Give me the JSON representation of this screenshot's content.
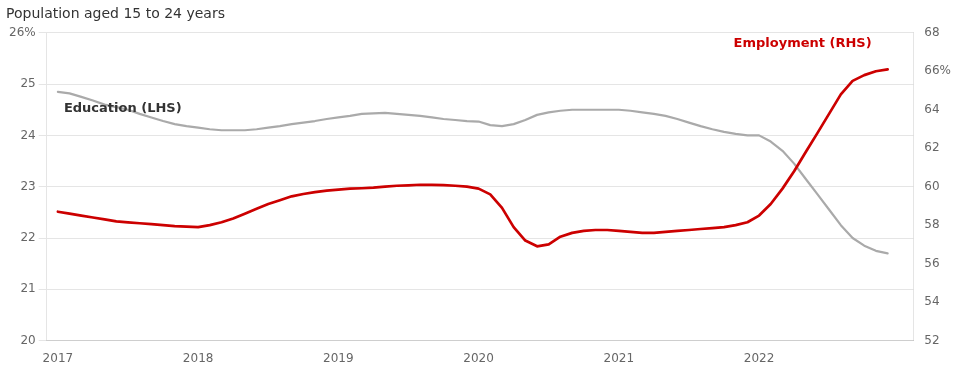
{
  "chart_data": {
    "type": "line",
    "title": "Population aged 15 to 24 years",
    "x": [
      2017.0,
      2017.083,
      2017.167,
      2017.25,
      2017.333,
      2017.417,
      2017.5,
      2017.583,
      2017.667,
      2017.75,
      2017.833,
      2017.917,
      2018.0,
      2018.083,
      2018.167,
      2018.25,
      2018.333,
      2018.417,
      2018.5,
      2018.583,
      2018.667,
      2018.75,
      2018.833,
      2018.917,
      2019.0,
      2019.083,
      2019.167,
      2019.25,
      2019.333,
      2019.417,
      2019.5,
      2019.583,
      2019.667,
      2019.75,
      2019.833,
      2019.917,
      2020.0,
      2020.083,
      2020.167,
      2020.25,
      2020.333,
      2020.417,
      2020.5,
      2020.583,
      2020.667,
      2020.75,
      2020.833,
      2020.917,
      2021.0,
      2021.083,
      2021.167,
      2021.25,
      2021.333,
      2021.417,
      2021.5,
      2021.583,
      2021.667,
      2021.75,
      2021.833,
      2021.917,
      2022.0,
      2022.083,
      2022.167,
      2022.25,
      2022.333,
      2022.417,
      2022.5,
      2022.583,
      2022.667,
      2022.75,
      2022.833,
      2022.917
    ],
    "series": [
      {
        "name": "Education (LHS)",
        "color": "#aaaaaa",
        "values": [
          24.85,
          24.82,
          24.75,
          24.68,
          24.6,
          24.55,
          24.5,
          24.42,
          24.35,
          24.28,
          24.22,
          24.18,
          24.15,
          24.12,
          24.1,
          24.1,
          24.1,
          24.12,
          24.15,
          24.18,
          24.22,
          24.25,
          24.28,
          24.32,
          24.35,
          24.38,
          24.42,
          24.43,
          24.44,
          24.42,
          24.4,
          24.38,
          24.35,
          24.32,
          24.3,
          24.28,
          24.27,
          24.2,
          24.18,
          24.22,
          24.3,
          24.4,
          24.45,
          24.48,
          24.5,
          24.5,
          24.5,
          24.5,
          24.5,
          24.48,
          24.45,
          24.42,
          24.38,
          24.32,
          24.25,
          24.18,
          24.12,
          24.07,
          24.03,
          24.0,
          24.0,
          23.88,
          23.7,
          23.45,
          23.15,
          22.85,
          22.55,
          22.25,
          22.0,
          21.85,
          21.75,
          21.7
        ]
      },
      {
        "name": "Employment (RHS)",
        "color": "#cc0000",
        "axis": "y2",
        "values": [
          58.7,
          58.6,
          58.5,
          58.4,
          58.3,
          58.2,
          58.15,
          58.1,
          58.05,
          58.0,
          57.95,
          57.92,
          57.9,
          58.0,
          58.15,
          58.35,
          58.6,
          58.85,
          59.1,
          59.3,
          59.5,
          59.62,
          59.72,
          59.8,
          59.85,
          59.9,
          59.92,
          59.95,
          60.0,
          60.05,
          60.07,
          60.1,
          60.1,
          60.08,
          60.05,
          60.0,
          59.9,
          59.6,
          58.9,
          57.9,
          57.2,
          56.9,
          57.0,
          57.4,
          57.6,
          57.7,
          57.75,
          57.75,
          57.7,
          57.65,
          57.6,
          57.6,
          57.65,
          57.7,
          57.75,
          57.8,
          57.85,
          57.9,
          58.0,
          58.15,
          58.5,
          59.1,
          59.9,
          60.8,
          61.8,
          62.8,
          63.8,
          64.8,
          65.5,
          65.8,
          66.0,
          66.1
        ]
      }
    ],
    "xlim": [
      2016.92,
      2023.1
    ],
    "xticks": [
      2017,
      2018,
      2019,
      2020,
      2021,
      2022
    ],
    "ylim": [
      20,
      26
    ],
    "yticks": [
      20,
      21,
      22,
      23,
      24,
      25,
      {
        "value": 26,
        "label": "26%"
      }
    ],
    "y2lim": [
      52,
      68
    ],
    "y2ticks": [
      52,
      54,
      56,
      58,
      60,
      62,
      64,
      {
        "value": 66,
        "label": "66%"
      },
      68
    ],
    "grid": true
  }
}
